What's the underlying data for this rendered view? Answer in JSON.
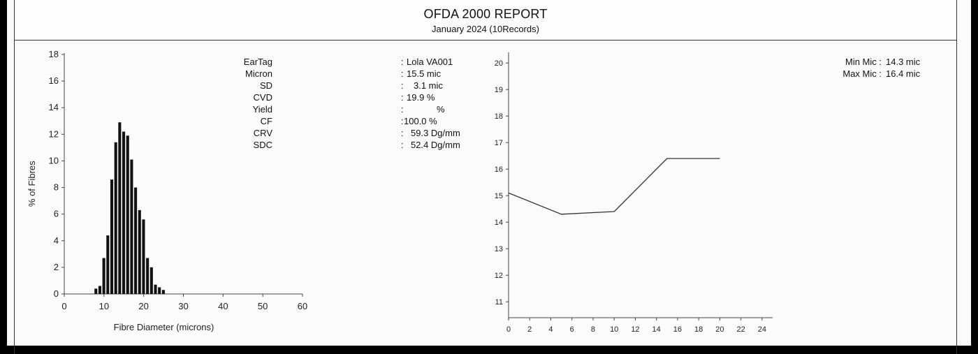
{
  "report": {
    "title": "OFDA 2000 REPORT",
    "subtitle": "January 2024 (10Records)"
  },
  "stats": [
    {
      "label": "EarTag",
      "value": "Lola VA001"
    },
    {
      "label": "Micron",
      "value": "15.5 mic"
    },
    {
      "label": "SD",
      "value": "3.1 mic"
    },
    {
      "label": "CVD",
      "value": "19.9 %"
    },
    {
      "label": "Yield",
      "value": "%"
    },
    {
      "label": "CF",
      "value": "100.0 %"
    },
    {
      "label": "CRV",
      "value": "59.3 Dg/mm"
    },
    {
      "label": "SDC",
      "value": "52.4 Dg/mm"
    }
  ],
  "minmax": [
    {
      "label": "Min Mic",
      "value": "14.3 mic"
    },
    {
      "label": "Max Mic",
      "value": "16.4 mic"
    }
  ],
  "chart_data": [
    {
      "type": "bar",
      "title": "",
      "xlabel": "Fibre Diameter (microns)",
      "ylabel": "% of Fibres",
      "xlim": [
        0,
        60
      ],
      "ylim": [
        0,
        18
      ],
      "xticks": [
        0,
        10,
        20,
        30,
        40,
        50,
        60
      ],
      "yticks": [
        0,
        2,
        4,
        6,
        8,
        10,
        12,
        14,
        16,
        18
      ],
      "bin_width": 1,
      "x": [
        8,
        9,
        10,
        11,
        12,
        13,
        14,
        15,
        16,
        17,
        18,
        19,
        20,
        21,
        22,
        23,
        24,
        25
      ],
      "values": [
        0.4,
        0.6,
        2.7,
        4.4,
        8.6,
        11.4,
        12.9,
        12.2,
        11.9,
        10.1,
        8.0,
        6.3,
        5.6,
        2.7,
        2.0,
        0.7,
        0.5,
        0.3
      ],
      "grid": false
    },
    {
      "type": "line",
      "title": "",
      "xlabel": "",
      "ylabel": "",
      "xlim": [
        0,
        25
      ],
      "ylim": [
        10.4,
        20.4
      ],
      "xticks": [
        0,
        2,
        4,
        6,
        8,
        10,
        12,
        14,
        16,
        18,
        20,
        22,
        24
      ],
      "yticks": [
        11,
        12,
        13,
        14,
        15,
        16,
        17,
        18,
        19,
        20
      ],
      "x": [
        0,
        5,
        10,
        15,
        20
      ],
      "values": [
        15.1,
        14.3,
        14.4,
        16.4,
        16.4
      ],
      "grid": false
    }
  ]
}
